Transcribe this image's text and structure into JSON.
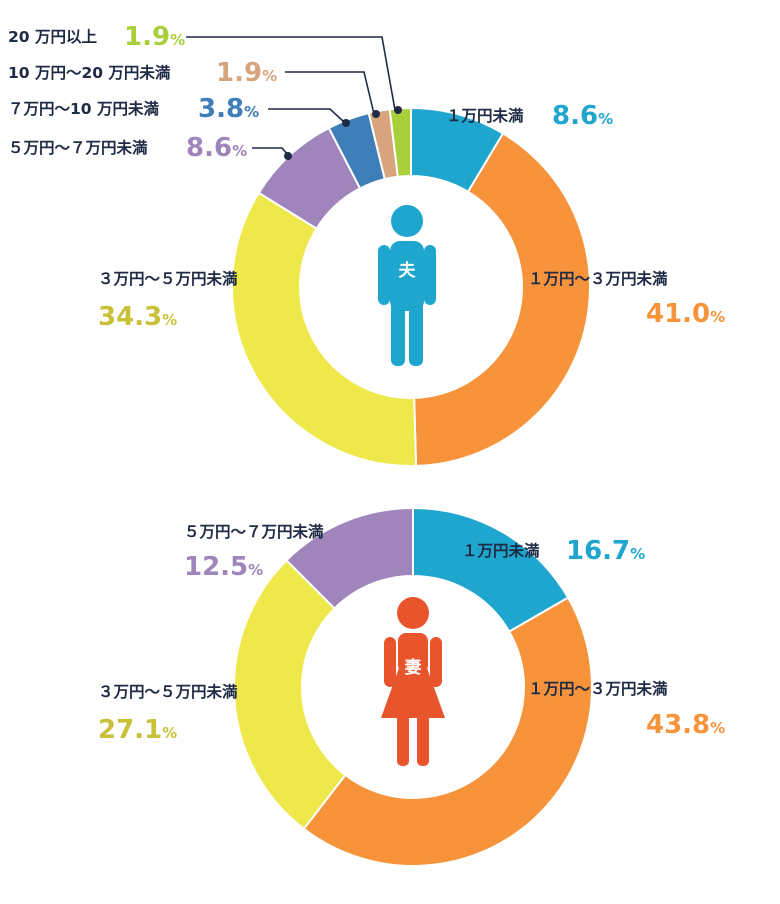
{
  "chart_data": [
    {
      "type": "pie",
      "center_icon_label": "夫",
      "slices": [
        {
          "label": "１万円未満",
          "value": 8.6,
          "value_text": "8.6",
          "unit": "%",
          "color": "#1fa6cf"
        },
        {
          "label": "１万円～３万円未満",
          "value": 41.0,
          "value_text": "41.0",
          "unit": "%",
          "color": "#f7933a"
        },
        {
          "label": "３万円～５万円未満",
          "value": 34.3,
          "value_text": "34.3",
          "unit": "%",
          "color": "#efe84a"
        },
        {
          "label": "５万円～７万円未満",
          "value": 8.6,
          "value_text": "8.6",
          "unit": "%",
          "color": "#9f85bb"
        },
        {
          "label": "７万円～10 万円未満",
          "value": 3.8,
          "value_text": "3.8",
          "unit": "%",
          "color": "#3f7fb9"
        },
        {
          "label": "10 万円～20 万円未満",
          "value": 1.9,
          "value_text": "1.9",
          "unit": "%",
          "color": "#d7a47e"
        },
        {
          "label": "20 万円以上",
          "value": 1.9,
          "value_text": "1.9",
          "unit": "%",
          "color": "#a9d03c"
        }
      ]
    },
    {
      "type": "pie",
      "center_icon_label": "妻",
      "slices": [
        {
          "label": "１万円未満",
          "value": 16.7,
          "value_text": "16.7",
          "unit": "%",
          "color": "#1fa6cf"
        },
        {
          "label": "１万円～３万円未満",
          "value": 43.8,
          "value_text": "43.8",
          "unit": "%",
          "color": "#f7933a"
        },
        {
          "label": "３万円～５万円未満",
          "value": 27.1,
          "value_text": "27.1",
          "unit": "%",
          "color": "#efe84a"
        },
        {
          "label": "５万円～７万円未満",
          "value": 12.5,
          "value_text": "12.5",
          "unit": "%",
          "color": "#9f85bb"
        }
      ]
    }
  ],
  "colors": {
    "label_text": "#1f2a44",
    "husband_icon": "#1fa6cf",
    "wife_icon": "#e8542c",
    "leader_line": "#1f2a44"
  }
}
